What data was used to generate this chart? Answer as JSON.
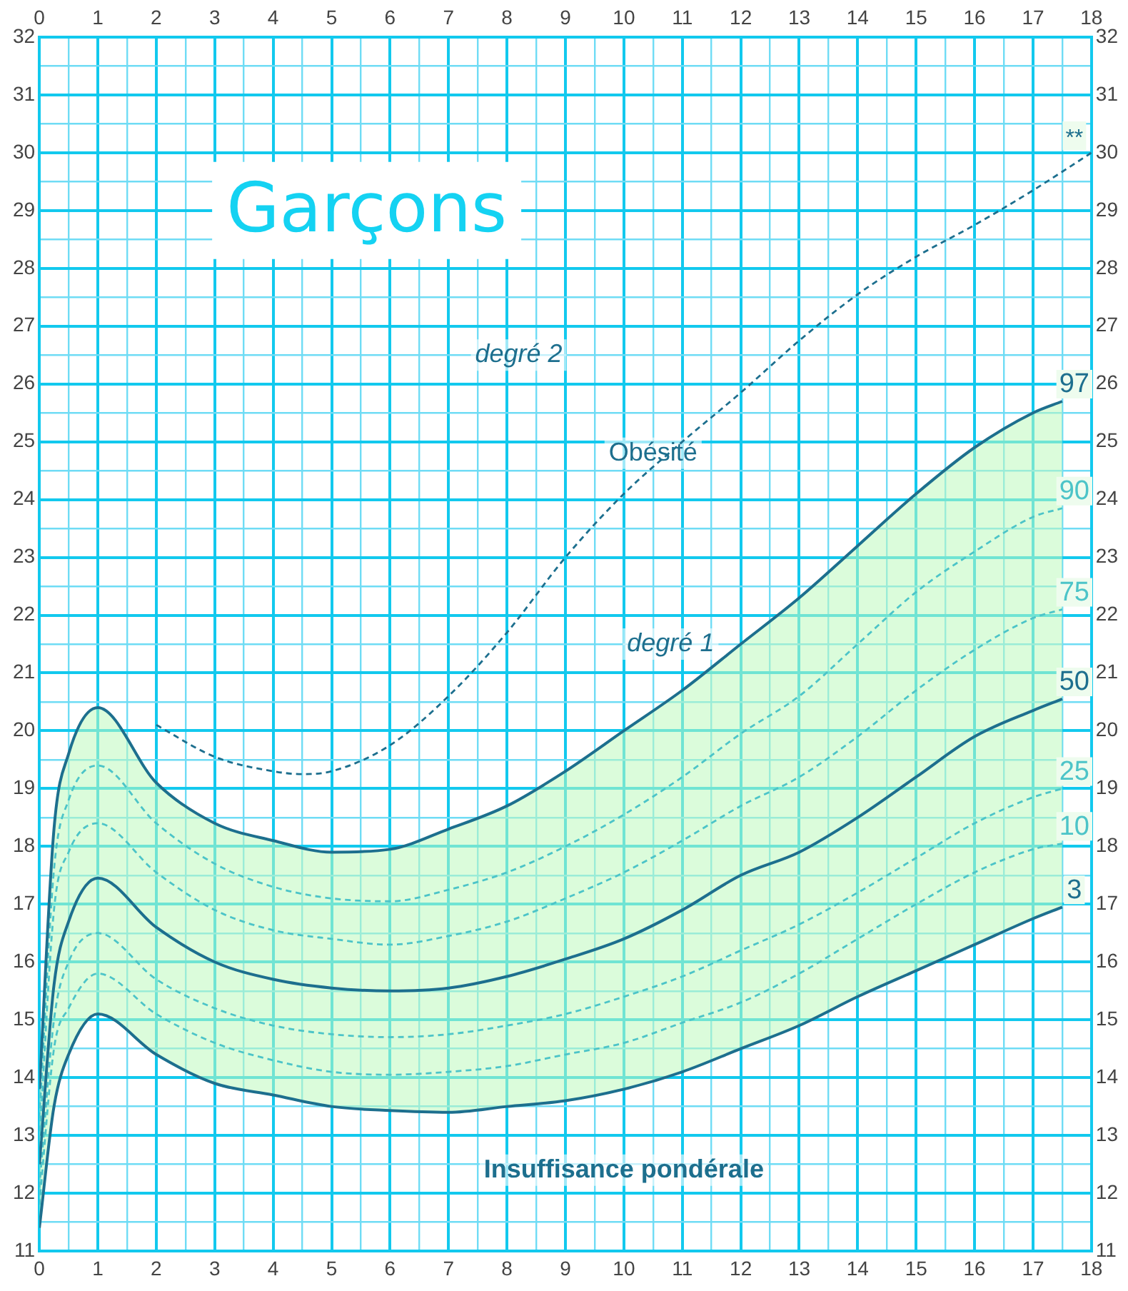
{
  "chart_data": {
    "type": "line",
    "title": "Garçons",
    "annotations": [
      "degré 2",
      "Obésité",
      "degré 1",
      "Insuffisance pondérale"
    ],
    "x": [
      0,
      0.25,
      0.5,
      1,
      2,
      3,
      4,
      5,
      6,
      7,
      8,
      9,
      10,
      11,
      12,
      13,
      14,
      15,
      16,
      17,
      17.5
    ],
    "series": [
      {
        "name": "97",
        "color": "#1d6f8e",
        "line_style": "solid",
        "values": [
          13.8,
          18.3,
          19.6,
          20.4,
          19.1,
          18.4,
          18.1,
          17.9,
          17.95,
          18.3,
          18.7,
          19.3,
          20.0,
          20.7,
          21.5,
          22.3,
          23.2,
          24.1,
          24.9,
          25.5,
          25.7
        ]
      },
      {
        "name": "90",
        "color": "#4cc4c8",
        "line_style": "dashed",
        "values": [
          13.3,
          17.6,
          18.8,
          19.4,
          18.4,
          17.7,
          17.3,
          17.1,
          17.05,
          17.25,
          17.55,
          18.0,
          18.55,
          19.2,
          19.95,
          20.6,
          21.5,
          22.4,
          23.1,
          23.7,
          23.85
        ]
      },
      {
        "name": "75",
        "color": "#4cc4c8",
        "line_style": "dashed",
        "values": [
          12.9,
          16.9,
          17.9,
          18.4,
          17.55,
          16.9,
          16.55,
          16.4,
          16.3,
          16.45,
          16.7,
          17.1,
          17.55,
          18.1,
          18.7,
          19.2,
          19.9,
          20.7,
          21.4,
          21.95,
          22.1
        ]
      },
      {
        "name": "50",
        "color": "#1d6f8e",
        "line_style": "solid",
        "values": [
          12.5,
          15.6,
          16.7,
          17.45,
          16.6,
          16.0,
          15.7,
          15.55,
          15.5,
          15.55,
          15.75,
          16.05,
          16.4,
          16.9,
          17.5,
          17.9,
          18.5,
          19.2,
          19.9,
          20.35,
          20.55
        ],
        "lower": [
          11.4,
          13.5,
          14.4,
          15.1,
          14.4,
          13.9,
          13.7,
          13.5,
          13.43,
          13.4,
          13.5,
          13.6,
          13.8,
          14.1,
          14.5,
          14.9,
          15.4,
          15.85,
          16.3,
          16.75,
          16.95
        ],
        "upper": [
          13.8,
          18.3,
          19.6,
          20.4,
          19.1,
          18.4,
          18.1,
          17.9,
          17.95,
          18.3,
          18.7,
          19.3,
          20.0,
          20.7,
          21.5,
          22.3,
          23.2,
          24.1,
          24.9,
          25.5,
          25.7
        ]
      },
      {
        "name": "25",
        "color": "#4cc4c8",
        "line_style": "dashed",
        "values": [
          12.1,
          15.0,
          16.0,
          16.5,
          15.7,
          15.2,
          14.9,
          14.75,
          14.7,
          14.75,
          14.9,
          15.1,
          15.4,
          15.75,
          16.2,
          16.65,
          17.2,
          17.8,
          18.4,
          18.85,
          19.0
        ]
      },
      {
        "name": "10",
        "color": "#4cc4c8",
        "line_style": "dashed",
        "values": [
          11.8,
          14.5,
          15.2,
          15.8,
          15.1,
          14.6,
          14.3,
          14.1,
          14.05,
          14.1,
          14.2,
          14.4,
          14.6,
          14.95,
          15.3,
          15.8,
          16.4,
          17.0,
          17.55,
          17.95,
          18.05
        ]
      },
      {
        "name": "3",
        "color": "#1d6f8e",
        "line_style": "solid",
        "values": [
          11.4,
          13.5,
          14.4,
          15.1,
          14.4,
          13.9,
          13.7,
          13.5,
          13.43,
          13.4,
          13.5,
          13.6,
          13.8,
          14.1,
          14.5,
          14.9,
          15.4,
          15.85,
          16.3,
          16.75,
          16.95
        ]
      },
      {
        "name": "**",
        "color": "#1d6f8e",
        "line_style": "dashed",
        "x": [
          2,
          3,
          4,
          4.5,
          5,
          6,
          7,
          8,
          9,
          10,
          11,
          12,
          13,
          14,
          15,
          16,
          17,
          18
        ],
        "values": [
          20.1,
          19.55,
          19.3,
          19.25,
          19.3,
          19.75,
          20.6,
          21.7,
          23.0,
          24.1,
          25.0,
          25.85,
          26.75,
          27.55,
          28.2,
          28.75,
          29.35,
          30.0
        ]
      }
    ],
    "xlim": [
      0,
      18
    ],
    "xticks": [
      0,
      {
        "value": 0.5,
        "label": null
      },
      1,
      {
        "value": 1.5,
        "label": null
      },
      2,
      {
        "value": 2.5,
        "label": null
      },
      3,
      {
        "value": 3.5,
        "label": null
      },
      4,
      {
        "value": 4.5,
        "label": null
      },
      5,
      {
        "value": 5.5,
        "label": null
      },
      6,
      {
        "value": 6.5,
        "label": null
      },
      7,
      {
        "value": 7.5,
        "label": null
      },
      8,
      {
        "value": 8.5,
        "label": null
      },
      9,
      {
        "value": 9.5,
        "label": null
      },
      10,
      {
        "value": 10.5,
        "label": null
      },
      11,
      {
        "value": 11.5,
        "label": null
      },
      12,
      {
        "value": 12.5,
        "label": null
      },
      13,
      {
        "value": 13.5,
        "label": null
      },
      14,
      {
        "value": 14.5,
        "label": null
      },
      15,
      {
        "value": 15.5,
        "label": null
      },
      16,
      {
        "value": 16.5,
        "label": null
      },
      17,
      {
        "value": 17.5,
        "label": null
      },
      18
    ],
    "x2lim": [
      0,
      18
    ],
    "x2ticks": [
      0,
      1,
      2,
      3,
      4,
      5,
      6,
      7,
      8,
      9,
      10,
      11,
      12,
      13,
      14,
      15,
      16,
      17,
      18
    ],
    "ylim": [
      11,
      32
    ],
    "yticks": [
      11,
      {
        "value": 11.5,
        "label": null
      },
      12,
      {
        "value": 12.5,
        "label": null
      },
      13,
      {
        "value": 13.5,
        "label": null
      },
      14,
      {
        "value": 14.5,
        "label": null
      },
      15,
      {
        "value": 15.5,
        "label": null
      },
      16,
      {
        "value": 16.5,
        "label": null
      },
      17,
      {
        "value": 17.5,
        "label": null
      },
      18,
      {
        "value": 18.5,
        "label": null
      },
      19,
      {
        "value": 19.5,
        "label": null
      },
      20,
      {
        "value": 20.5,
        "label": null
      },
      21,
      {
        "value": 21.5,
        "label": null
      },
      22,
      {
        "value": 22.5,
        "label": null
      },
      23,
      {
        "value": 23.5,
        "label": null
      },
      24,
      {
        "value": 24.5,
        "label": null
      },
      25,
      {
        "value": 25.5,
        "label": null
      },
      26,
      {
        "value": 26.5,
        "label": null
      },
      27,
      {
        "value": 27.5,
        "label": null
      },
      28,
      {
        "value": 28.5,
        "label": null
      },
      29,
      {
        "value": 29.5,
        "label": null
      },
      30,
      {
        "value": 30.5,
        "label": null
      },
      31,
      {
        "value": 31.5,
        "label": null
      },
      32
    ],
    "y2lim": [
      11,
      32
    ],
    "y2ticks": [
      11,
      12,
      13,
      14,
      15,
      16,
      17,
      18,
      19,
      20,
      21,
      22,
      23,
      24,
      25,
      26,
      27,
      28,
      29,
      30,
      31,
      32
    ],
    "grid": true,
    "legend": false,
    "marker": "none"
  }
}
